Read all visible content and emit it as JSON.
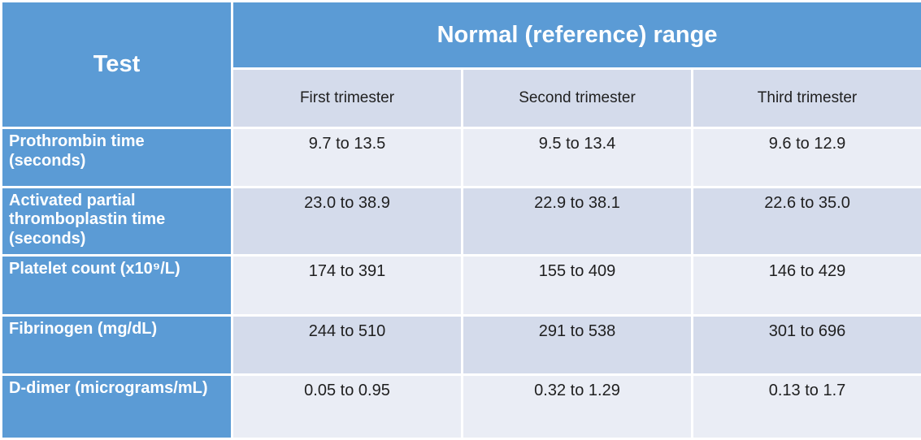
{
  "table": {
    "header": {
      "test_label": "Test",
      "range_label": "Normal (reference) range",
      "columns": [
        "First trimester",
        "Second trimester",
        "Third trimester"
      ]
    },
    "rows": [
      {
        "test": "Prothrombin time (seconds)",
        "values": [
          "9.7 to 13.5",
          "9.5 to 13.4",
          "9.6 to 12.9"
        ]
      },
      {
        "test": "Activated partial thromboplastin time (seconds)",
        "values": [
          "23.0 to 38.9",
          "22.9 to 38.1",
          "22.6 to 35.0"
        ]
      },
      {
        "test": "Platelet count (x10⁹/L)",
        "values": [
          "174 to 391",
          "155 to 409",
          "146 to 429"
        ]
      },
      {
        "test": "Fibrinogen (mg/dL)",
        "values": [
          "244 to 510",
          "291 to 538",
          "301 to 696"
        ]
      },
      {
        "test": "D-dimer (micrograms/mL)",
        "values": [
          "0.05 to 0.95",
          "0.32 to 1.29",
          "0.13 to 1.7"
        ]
      }
    ]
  },
  "colors": {
    "header_blue": "#5B9BD5",
    "band_light": "#EAEDF5",
    "band_dark": "#D4DBEB",
    "header_text": "#FFFFFF",
    "body_text": "#1F1F1F",
    "grid_white": "#FFFFFF"
  }
}
